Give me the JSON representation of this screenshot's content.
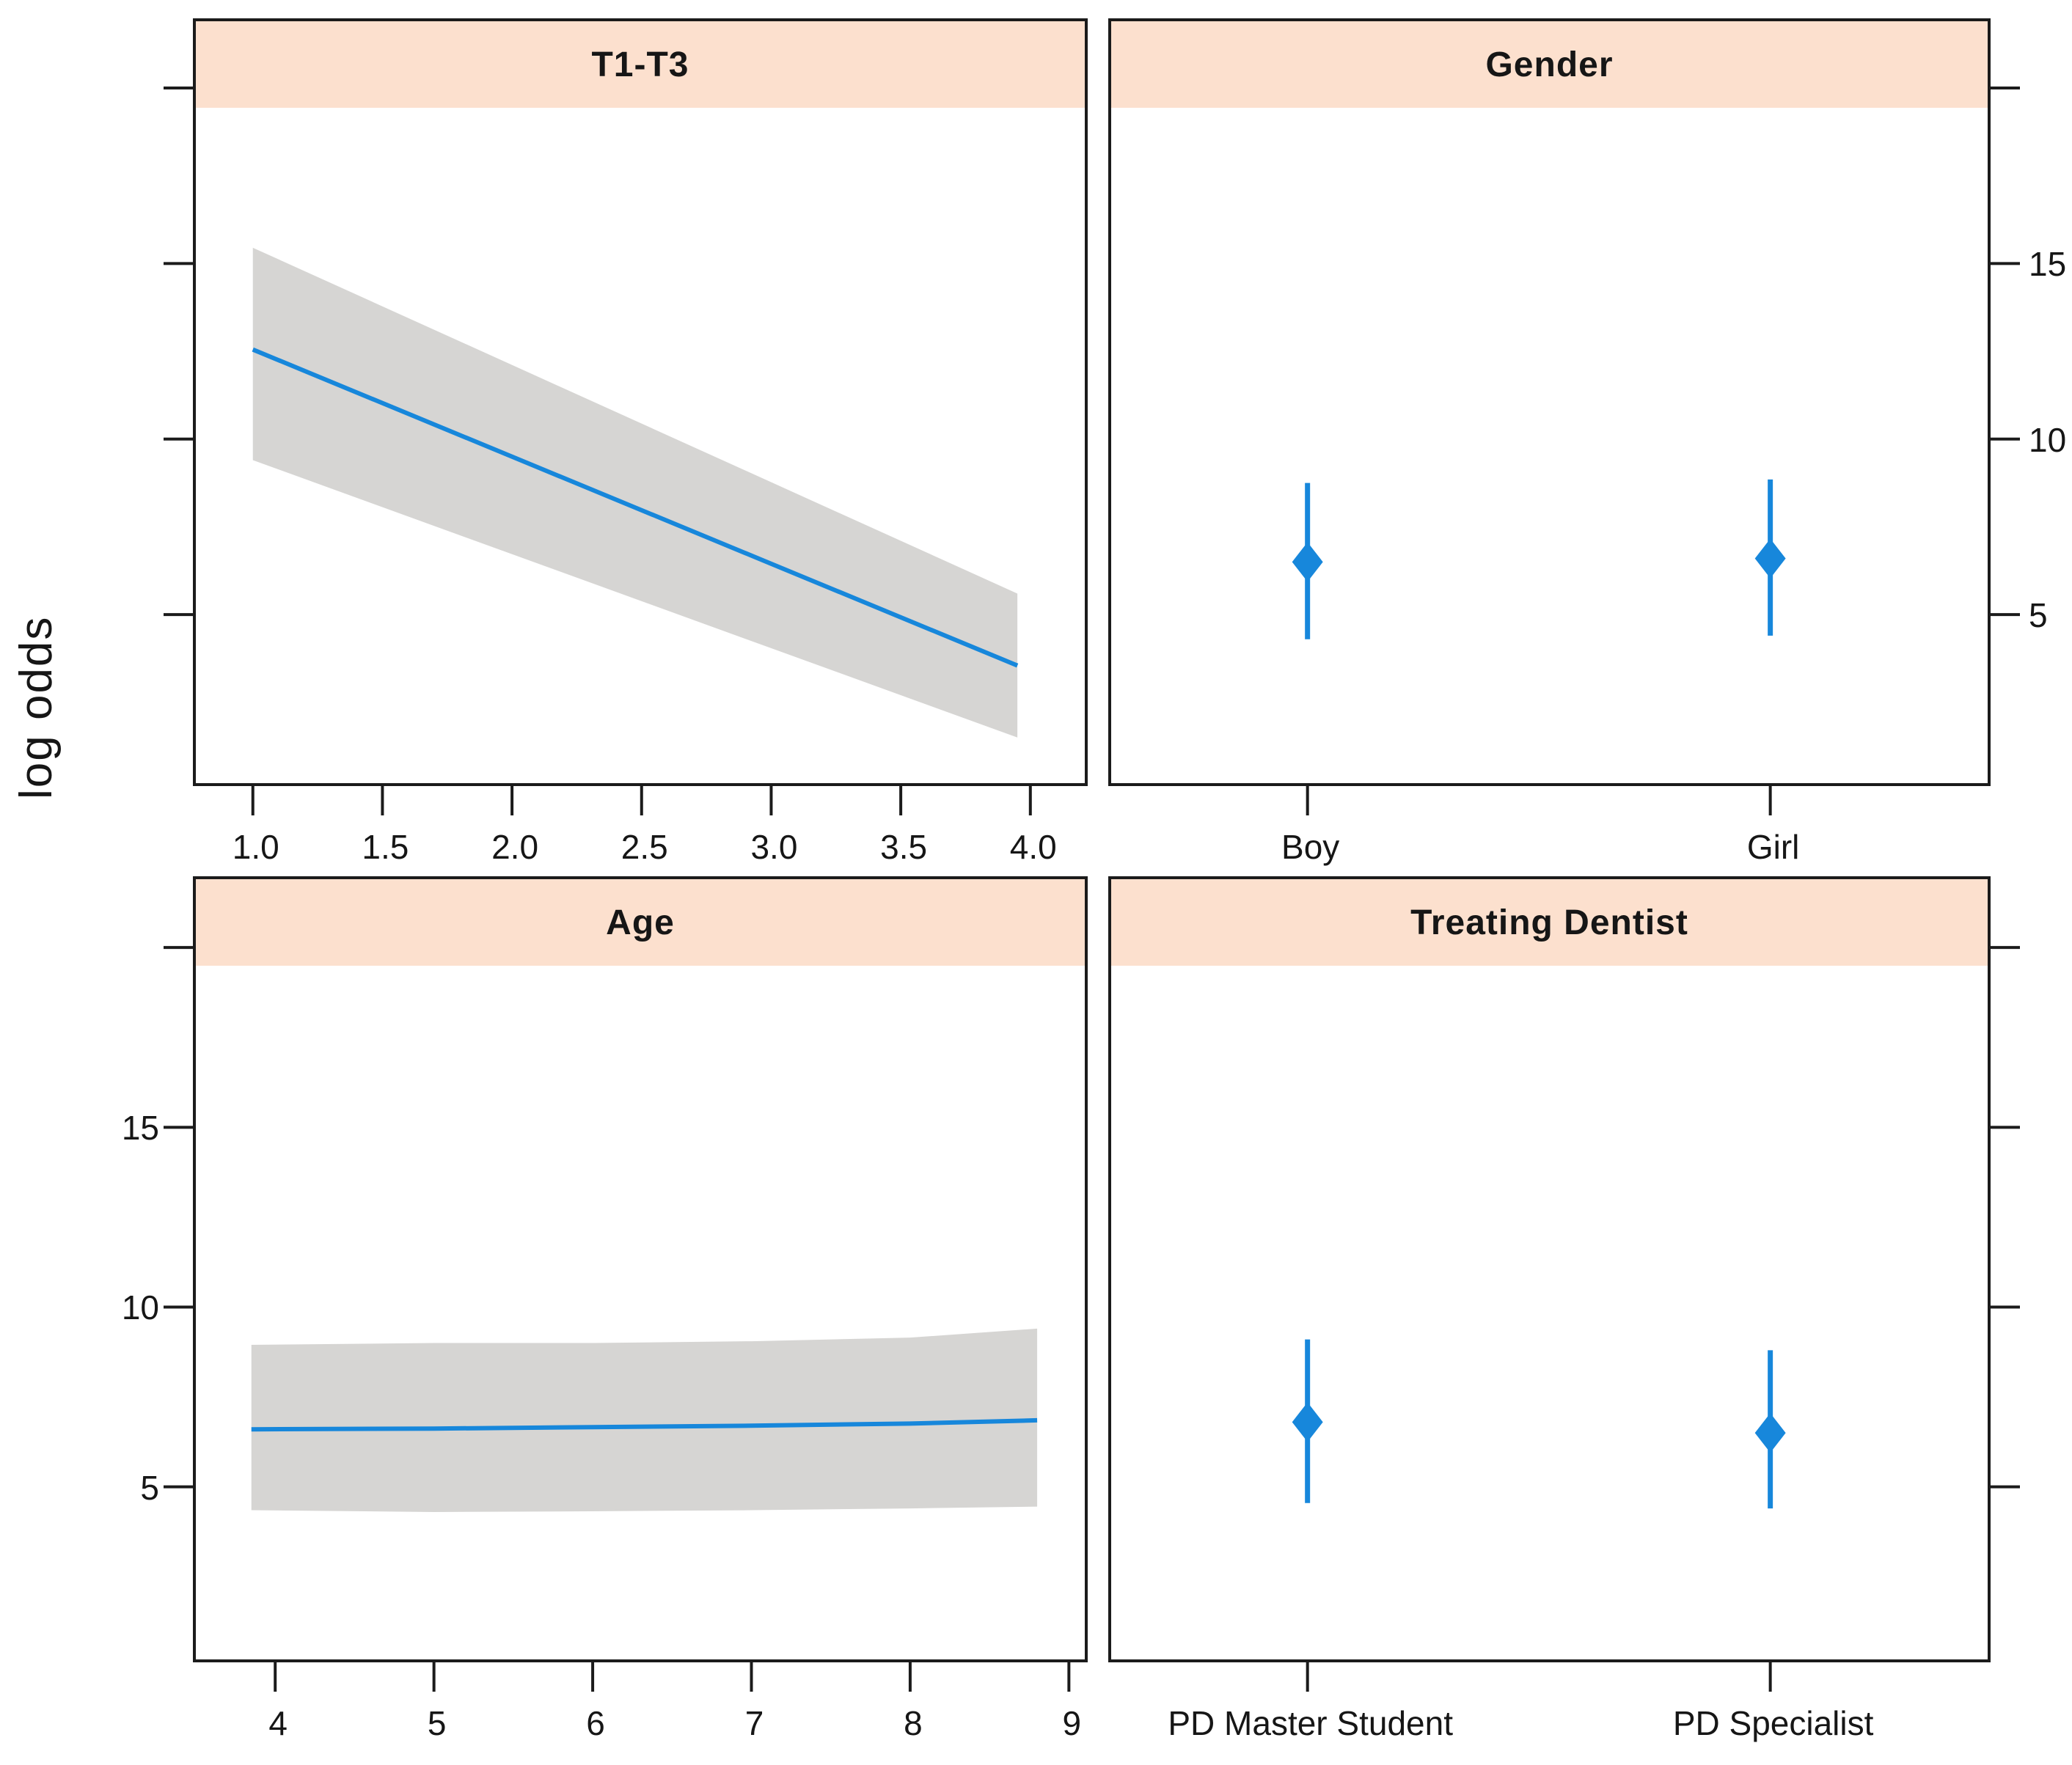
{
  "figure": {
    "ylabel": "log odds",
    "colors": {
      "line": "#1787DB",
      "marker": "#1787DB",
      "band": "#D6D5D3",
      "header_bg": "#FCE0CE",
      "axis": "#1B1B1B",
      "text": "#161616"
    },
    "ylim": [
      0.2,
      21.9
    ],
    "yticks": [
      {
        "v": 5,
        "label": "5"
      },
      {
        "v": 10,
        "label": "10"
      },
      {
        "v": 15,
        "label": "15"
      },
      {
        "v": 20,
        "label": ""
      }
    ]
  },
  "chart_data": [
    {
      "id": "t1t3",
      "title": "T1-T3",
      "type": "line",
      "xlabel": "",
      "ylabel": "log odds",
      "xlim": [
        0.78,
        4.21
      ],
      "grid": false,
      "xticks": [
        {
          "v": 1.0,
          "label": "1.0"
        },
        {
          "v": 1.5,
          "label": "1.5"
        },
        {
          "v": 2.0,
          "label": "2.0"
        },
        {
          "v": 2.5,
          "label": "2.5"
        },
        {
          "v": 3.0,
          "label": "3.0"
        },
        {
          "v": 3.5,
          "label": "3.5"
        },
        {
          "v": 4.0,
          "label": "4.0"
        }
      ],
      "axes": {
        "yside": "left",
        "ylabels": false
      },
      "x": [
        1.0,
        3.95
      ],
      "y": [
        12.55,
        3.55
      ],
      "band_upper": [
        15.45,
        5.6
      ],
      "band_lower": [
        9.4,
        1.5
      ]
    },
    {
      "id": "gender",
      "title": "Gender",
      "type": "points-ci",
      "xlabel": "",
      "ylabel": "log odds",
      "axes": {
        "yside": "right",
        "ylabels": true
      },
      "categories": [
        {
          "label": "Boy",
          "pos": 0.224
        },
        {
          "label": "Girl",
          "pos": 0.752
        }
      ],
      "est": [
        6.5,
        6.6
      ],
      "lo": [
        4.3,
        4.4
      ],
      "hi": [
        8.75,
        8.85
      ]
    },
    {
      "id": "age",
      "title": "Age",
      "type": "line",
      "xlabel": "",
      "ylabel": "log odds",
      "xlim": [
        3.5,
        9.1
      ],
      "grid": false,
      "xticks": [
        {
          "v": 4,
          "label": "4"
        },
        {
          "v": 5,
          "label": "5"
        },
        {
          "v": 6,
          "label": "6"
        },
        {
          "v": 7,
          "label": "7"
        },
        {
          "v": 8,
          "label": "8"
        },
        {
          "v": 9,
          "label": "9"
        }
      ],
      "axes": {
        "yside": "left",
        "ylabels": true
      },
      "x": [
        3.85,
        5.0,
        6.0,
        7.0,
        8.0,
        8.8
      ],
      "y": [
        6.6,
        6.62,
        6.66,
        6.7,
        6.76,
        6.85
      ],
      "band_upper": [
        8.95,
        9.0,
        9.0,
        9.05,
        9.15,
        9.4
      ],
      "band_lower": [
        4.35,
        4.3,
        4.32,
        4.35,
        4.4,
        4.45
      ]
    },
    {
      "id": "dentist",
      "title": "Treating Dentist",
      "type": "points-ci",
      "xlabel": "",
      "ylabel": "log odds",
      "axes": {
        "yside": "right",
        "ylabels": false
      },
      "categories": [
        {
          "label": "PD Master Student",
          "pos": 0.224
        },
        {
          "label": "PD Specialist",
          "pos": 0.752
        }
      ],
      "est": [
        6.8,
        6.5
      ],
      "lo": [
        4.55,
        4.4
      ],
      "hi": [
        9.1,
        8.8
      ]
    }
  ]
}
